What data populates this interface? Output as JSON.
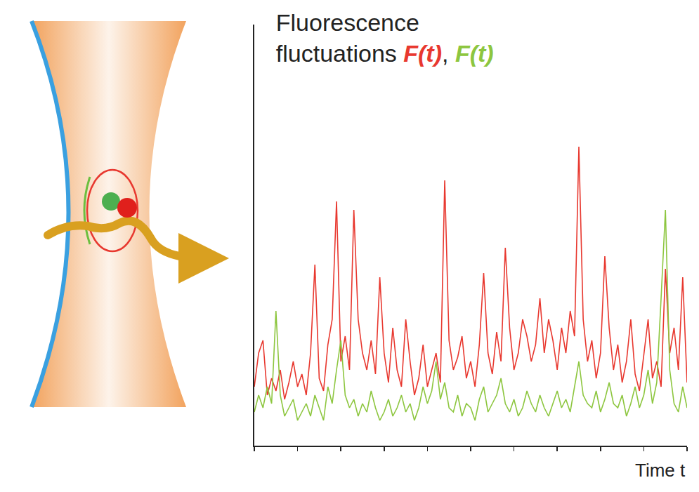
{
  "chart_data": {
    "type": "line",
    "title": "Fluorescence fluctuations F(t), F(t)",
    "xlabel": "Time t",
    "x": [
      0,
      0.1,
      0.2,
      0.3,
      0.4,
      0.5,
      0.6,
      0.7,
      0.8,
      0.9,
      1,
      1.1,
      1.2,
      1.3,
      1.4,
      1.5,
      1.6,
      1.7,
      1.8,
      1.9,
      2,
      2.1,
      2.2,
      2.3,
      2.4,
      2.5,
      2.6,
      2.7,
      2.8,
      2.9,
      3,
      3.1,
      3.2,
      3.3,
      3.4,
      3.5,
      3.6,
      3.7,
      3.8,
      3.9,
      4,
      4.1,
      4.2,
      4.3,
      4.4,
      4.5,
      4.6,
      4.7,
      4.8,
      4.9,
      5,
      5.1,
      5.2,
      5.3,
      5.4,
      5.5,
      5.6,
      5.7,
      5.8,
      5.9,
      6,
      6.1,
      6.2,
      6.3,
      6.4,
      6.5,
      6.6,
      6.7,
      6.8,
      6.9,
      7,
      7.1,
      7.2,
      7.3,
      7.4,
      7.5,
      7.6,
      7.7,
      7.8,
      7.9,
      8,
      8.1,
      8.2,
      8.3,
      8.4,
      8.5,
      8.6,
      8.7,
      8.8,
      8.9,
      9,
      9.1,
      9.2,
      9.3,
      9.4,
      9.5,
      9.6,
      9.7,
      9.8,
      9.9,
      10
    ],
    "xlim": [
      0,
      10
    ],
    "xticks": [
      0,
      1,
      2,
      3,
      4,
      5,
      6,
      7,
      8,
      9,
      10
    ],
    "ylim": [
      0,
      100
    ],
    "grid": false,
    "tick_labels": false,
    "series": [
      {
        "name": "F(t)",
        "color": "#e8382f",
        "values": [
          14,
          22,
          25,
          12,
          16,
          13,
          18,
          11,
          15,
          20,
          14,
          17,
          12,
          22,
          43,
          16,
          13,
          24,
          30,
          58,
          20,
          26,
          18,
          56,
          30,
          22,
          18,
          25,
          17,
          40,
          22,
          15,
          28,
          18,
          14,
          30,
          20,
          12,
          16,
          24,
          14,
          18,
          22,
          15,
          63,
          25,
          18,
          21,
          26,
          16,
          20,
          14,
          24,
          41,
          22,
          17,
          27,
          20,
          47,
          28,
          18,
          22,
          30,
          26,
          20,
          24,
          35,
          22,
          30,
          25,
          18,
          28,
          22,
          32,
          26,
          71,
          30,
          20,
          25,
          16,
          22,
          45,
          28,
          18,
          24,
          15,
          20,
          30,
          17,
          13,
          22,
          30,
          16,
          20,
          14,
          42,
          22,
          28,
          18,
          40,
          15
        ]
      },
      {
        "name": "F(t)",
        "color": "#8dc63f",
        "values": [
          8,
          12,
          9,
          14,
          10,
          32,
          12,
          7,
          9,
          11,
          6,
          8,
          10,
          7,
          12,
          9,
          6,
          14,
          10,
          18,
          25,
          12,
          9,
          11,
          7,
          10,
          8,
          13,
          9,
          6,
          8,
          11,
          7,
          9,
          12,
          8,
          10,
          6,
          9,
          14,
          10,
          13,
          20,
          11,
          15,
          9,
          8,
          12,
          7,
          10,
          9,
          6,
          11,
          14,
          8,
          10,
          12,
          16,
          10,
          8,
          11,
          7,
          9,
          13,
          10,
          8,
          12,
          9,
          7,
          10,
          13,
          9,
          11,
          8,
          14,
          20,
          12,
          10,
          9,
          13,
          8,
          11,
          15,
          10,
          9,
          12,
          7,
          10,
          14,
          9,
          12,
          18,
          10,
          15,
          35,
          56,
          18,
          10,
          8,
          14,
          9
        ]
      }
    ]
  }
}
